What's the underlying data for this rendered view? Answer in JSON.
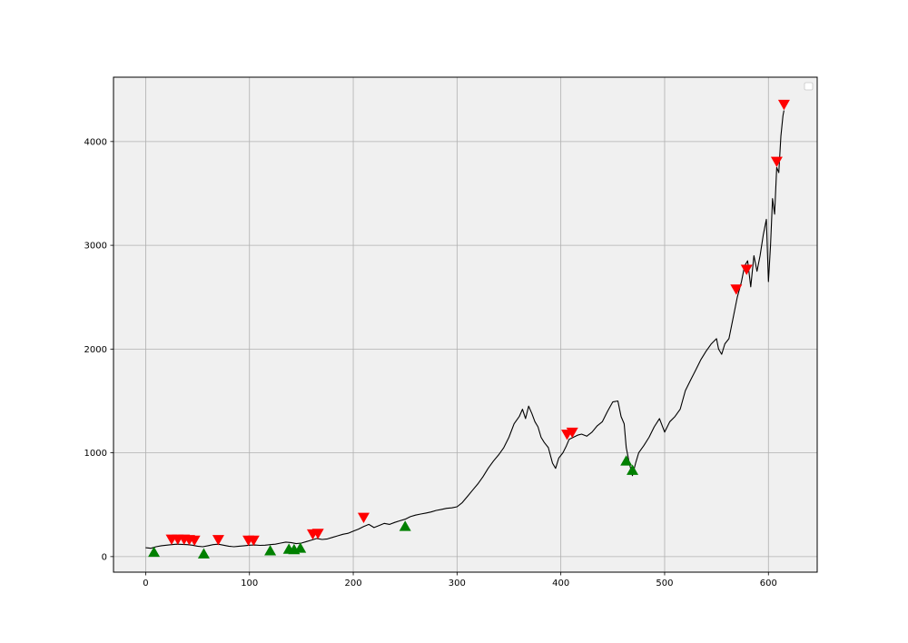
{
  "chart_data": {
    "type": "line",
    "title": "",
    "xlabel": "",
    "ylabel": "",
    "xlim": [
      -31,
      647
    ],
    "ylim": [
      -150,
      4620
    ],
    "xticks": [
      0,
      100,
      200,
      300,
      400,
      500,
      600
    ],
    "yticks": [
      0,
      1000,
      2000,
      3000,
      4000
    ],
    "xtick_labels": [
      "0",
      "100",
      "200",
      "300",
      "400",
      "500",
      "600"
    ],
    "ytick_labels": [
      "0",
      "1000",
      "2000",
      "3000",
      "4000"
    ],
    "grid": true,
    "legend": "top-right (empty)",
    "colors": {
      "background": "#f0f0f0",
      "line": "#000000",
      "buy": "#008000",
      "sell": "#ff0000",
      "grid": "#b0b0b0"
    },
    "series": [
      {
        "values": [
          [
            0,
            85
          ],
          [
            5,
            80
          ],
          [
            10,
            95
          ],
          [
            15,
            105
          ],
          [
            20,
            110
          ],
          [
            25,
            115
          ],
          [
            30,
            120
          ],
          [
            35,
            118
          ],
          [
            40,
            115
          ],
          [
            45,
            110
          ],
          [
            50,
            100
          ],
          [
            55,
            95
          ],
          [
            60,
            105
          ],
          [
            65,
            115
          ],
          [
            70,
            120
          ],
          [
            75,
            110
          ],
          [
            80,
            100
          ],
          [
            85,
            95
          ],
          [
            90,
            100
          ],
          [
            95,
            105
          ],
          [
            100,
            110
          ],
          [
            105,
            112
          ],
          [
            110,
            108
          ],
          [
            115,
            110
          ],
          [
            120,
            115
          ],
          [
            125,
            120
          ],
          [
            130,
            130
          ],
          [
            135,
            140
          ],
          [
            140,
            135
          ],
          [
            145,
            125
          ],
          [
            150,
            130
          ],
          [
            155,
            145
          ],
          [
            160,
            160
          ],
          [
            165,
            175
          ],
          [
            170,
            165
          ],
          [
            175,
            170
          ],
          [
            180,
            185
          ],
          [
            185,
            200
          ],
          [
            190,
            215
          ],
          [
            195,
            225
          ],
          [
            200,
            245
          ],
          [
            205,
            265
          ],
          [
            210,
            290
          ],
          [
            215,
            310
          ],
          [
            220,
            280
          ],
          [
            225,
            300
          ],
          [
            230,
            320
          ],
          [
            235,
            310
          ],
          [
            240,
            330
          ],
          [
            245,
            345
          ],
          [
            250,
            360
          ],
          [
            255,
            385
          ],
          [
            260,
            400
          ],
          [
            265,
            410
          ],
          [
            270,
            420
          ],
          [
            275,
            430
          ],
          [
            280,
            445
          ],
          [
            285,
            455
          ],
          [
            290,
            465
          ],
          [
            295,
            470
          ],
          [
            300,
            480
          ],
          [
            305,
            520
          ],
          [
            310,
            580
          ],
          [
            315,
            640
          ],
          [
            320,
            700
          ],
          [
            325,
            770
          ],
          [
            330,
            850
          ],
          [
            335,
            920
          ],
          [
            340,
            980
          ],
          [
            345,
            1050
          ],
          [
            350,
            1150
          ],
          [
            355,
            1280
          ],
          [
            360,
            1350
          ],
          [
            363,
            1420
          ],
          [
            366,
            1330
          ],
          [
            369,
            1450
          ],
          [
            372,
            1380
          ],
          [
            375,
            1300
          ],
          [
            378,
            1250
          ],
          [
            381,
            1150
          ],
          [
            384,
            1100
          ],
          [
            388,
            1050
          ],
          [
            392,
            900
          ],
          [
            395,
            850
          ],
          [
            398,
            950
          ],
          [
            402,
            1000
          ],
          [
            405,
            1060
          ],
          [
            408,
            1130
          ],
          [
            412,
            1150
          ],
          [
            416,
            1170
          ],
          [
            420,
            1180
          ],
          [
            425,
            1160
          ],
          [
            430,
            1200
          ],
          [
            435,
            1260
          ],
          [
            440,
            1300
          ],
          [
            445,
            1400
          ],
          [
            450,
            1490
          ],
          [
            455,
            1500
          ],
          [
            458,
            1350
          ],
          [
            461,
            1280
          ],
          [
            463,
            1050
          ],
          [
            466,
            900
          ],
          [
            469,
            780
          ],
          [
            472,
            900
          ],
          [
            475,
            1000
          ],
          [
            480,
            1070
          ],
          [
            485,
            1150
          ],
          [
            490,
            1250
          ],
          [
            495,
            1330
          ],
          [
            500,
            1200
          ],
          [
            505,
            1300
          ],
          [
            510,
            1350
          ],
          [
            515,
            1420
          ],
          [
            520,
            1600
          ],
          [
            525,
            1700
          ],
          [
            530,
            1800
          ],
          [
            535,
            1900
          ],
          [
            540,
            1980
          ],
          [
            545,
            2050
          ],
          [
            550,
            2100
          ],
          [
            552,
            2000
          ],
          [
            555,
            1950
          ],
          [
            558,
            2050
          ],
          [
            562,
            2100
          ],
          [
            566,
            2300
          ],
          [
            570,
            2500
          ],
          [
            574,
            2650
          ],
          [
            577,
            2800
          ],
          [
            580,
            2850
          ],
          [
            583,
            2600
          ],
          [
            586,
            2900
          ],
          [
            589,
            2750
          ],
          [
            592,
            2900
          ],
          [
            595,
            3100
          ],
          [
            598,
            3250
          ],
          [
            600,
            2650
          ],
          [
            602,
            3000
          ],
          [
            604,
            3450
          ],
          [
            606,
            3300
          ],
          [
            608,
            3750
          ],
          [
            610,
            3700
          ],
          [
            612,
            4050
          ],
          [
            614,
            4250
          ],
          [
            615,
            4300
          ]
        ]
      }
    ],
    "buy_signals": [
      [
        8,
        40
      ],
      [
        56,
        25
      ],
      [
        120,
        55
      ],
      [
        138,
        70
      ],
      [
        143,
        65
      ],
      [
        149,
        80
      ],
      [
        250,
        290
      ],
      [
        463,
        920
      ],
      [
        469,
        830
      ]
    ],
    "sell_signals": [
      [
        25,
        170
      ],
      [
        31,
        170
      ],
      [
        37,
        170
      ],
      [
        42,
        165
      ],
      [
        47,
        160
      ],
      [
        70,
        165
      ],
      [
        99,
        160
      ],
      [
        104,
        160
      ],
      [
        161,
        220
      ],
      [
        166,
        225
      ],
      [
        210,
        380
      ],
      [
        406,
        1180
      ],
      [
        411,
        1200
      ],
      [
        569,
        2580
      ],
      [
        579,
        2770
      ],
      [
        608,
        3810
      ],
      [
        615,
        4360
      ]
    ]
  }
}
